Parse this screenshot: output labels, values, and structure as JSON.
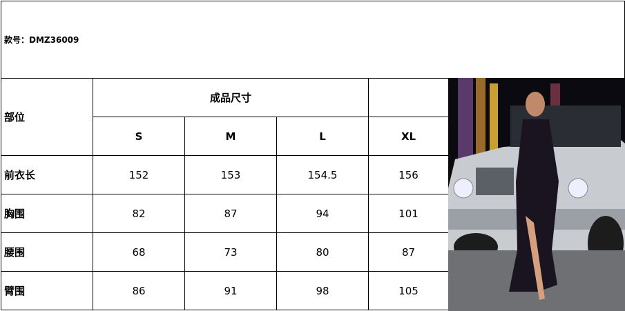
{
  "header": {
    "style_label": "款号：",
    "style_number": "DMZ36009"
  },
  "table": {
    "part_header": "部位",
    "size_group_header": "成品尺寸",
    "sizes": [
      "S",
      "M",
      "L",
      "XL"
    ],
    "rows": [
      {
        "label": "前衣长",
        "values": [
          "152",
          "153",
          "154.5",
          "156"
        ]
      },
      {
        "label": "胸围",
        "values": [
          "82",
          "87",
          "94",
          "101"
        ]
      },
      {
        "label": "腰围",
        "values": [
          "68",
          "73",
          "80",
          "87"
        ]
      },
      {
        "label": "臂围",
        "values": [
          "86",
          "91",
          "98",
          "105"
        ]
      }
    ]
  },
  "photo": {
    "description_icon": "product-photo-model-sequin-dress-with-white-suv"
  }
}
